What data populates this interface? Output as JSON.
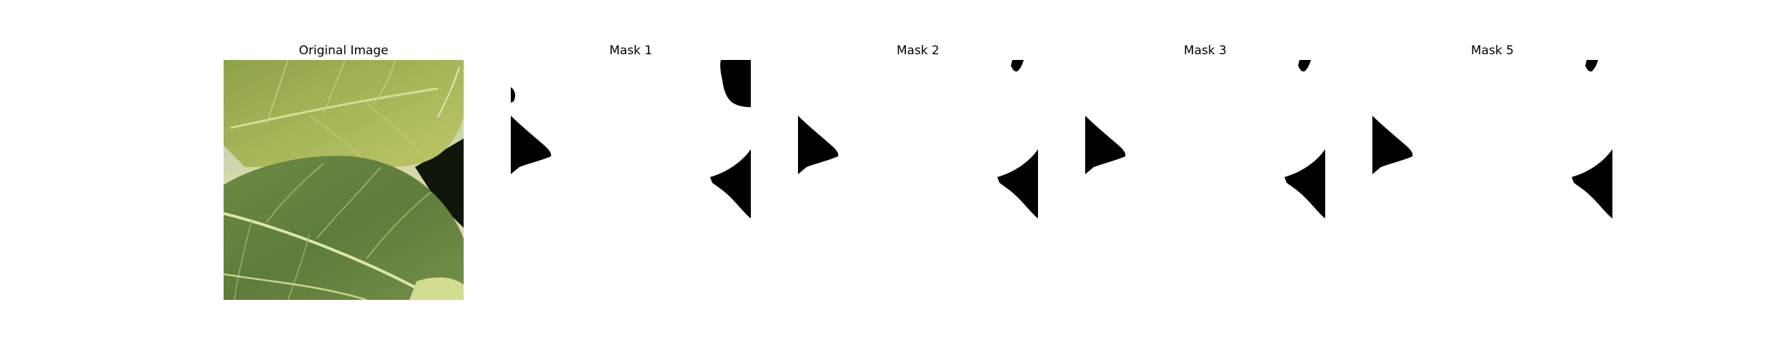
{
  "panels": [
    {
      "title": "Original Image"
    },
    {
      "title": "Mask 1"
    },
    {
      "title": "Mask 2"
    },
    {
      "title": "Mask 3"
    },
    {
      "title": "Mask 5"
    }
  ],
  "colors": {
    "background": "#ffffff",
    "mask_foreground": "#000000",
    "leaf_light": "#b7c063",
    "leaf_mid": "#8fa24a",
    "leaf_dark": "#55733a",
    "shadow": "#0d1608"
  }
}
